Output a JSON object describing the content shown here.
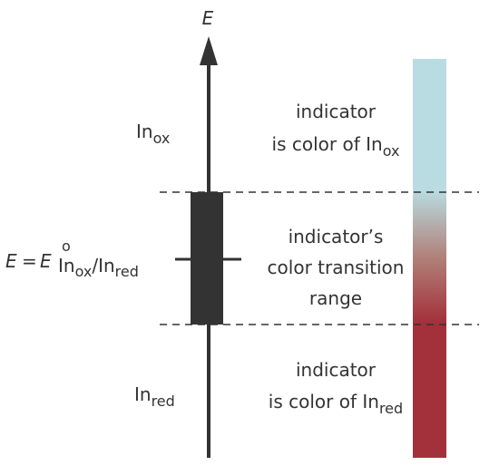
{
  "axis_label": "E",
  "upper": {
    "species": {
      "base": "In",
      "sub": "ox"
    },
    "line1": "indicator",
    "line2": {
      "base": "is color of In",
      "sub": "ox"
    }
  },
  "transition": {
    "potential": {
      "lhs": "E",
      "equals": "=",
      "symbol": "E",
      "superscript": "o",
      "sub1": "In",
      "sub1_sub": "ox",
      "slash": "/",
      "sub2": "In",
      "sub2_sub": "red"
    },
    "lines": [
      "indicator’s",
      "color transition",
      "range"
    ]
  },
  "lower": {
    "species": {
      "base": "In",
      "sub": "red"
    },
    "line1": "indicator",
    "line2": {
      "base": "is color of In",
      "sub": "red"
    }
  }
}
